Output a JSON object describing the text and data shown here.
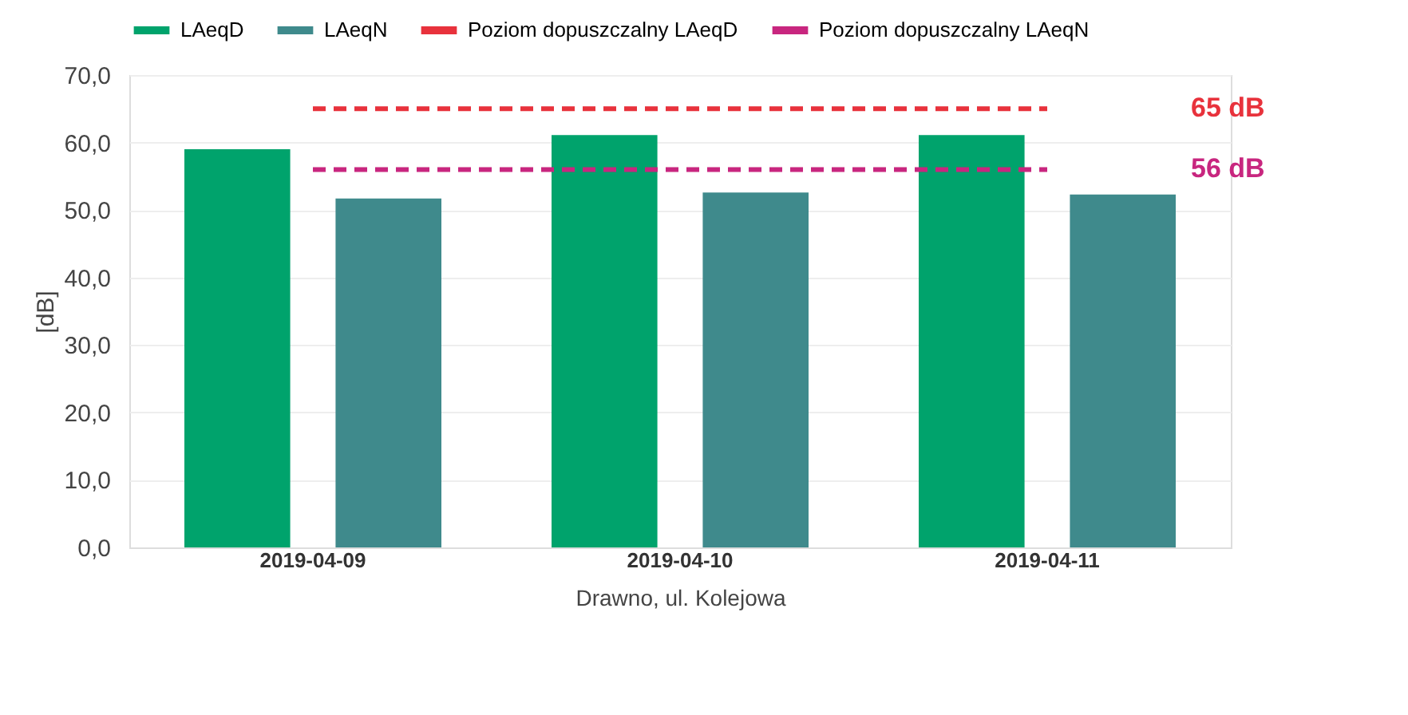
{
  "chart_data": {
    "type": "bar",
    "xlabel": "Drawno, ul. Kolejowa",
    "ylabel": "[dB]",
    "categories": [
      "2019-04-09",
      "2019-04-10",
      "2019-04-11"
    ],
    "series": [
      {
        "name": "LAeqD",
        "color": "#00a36c",
        "values": [
          59.0,
          61.1,
          61.1
        ]
      },
      {
        "name": "LAeqN",
        "color": "#3f8a8c",
        "values": [
          51.7,
          52.6,
          52.3
        ]
      },
      {
        "name": "Poziom dopuszczalny LAeqD",
        "type": "line",
        "color": "#e8323c",
        "line_style": "dashed",
        "values": [
          65,
          65,
          65
        ]
      },
      {
        "name": "Poziom dopuszczalny LAeqN",
        "type": "line",
        "color": "#c8267f",
        "line_style": "dashed",
        "values": [
          56,
          56,
          56
        ]
      }
    ],
    "annotations": [
      "65 dB",
      "56 dB"
    ],
    "ylim": [
      0,
      70
    ],
    "yticks": [
      {
        "value": 0,
        "label": "0,0"
      },
      {
        "value": 10,
        "label": "10,0"
      },
      {
        "value": 20,
        "label": "20,0"
      },
      {
        "value": 30,
        "label": "30,0"
      },
      {
        "value": 40,
        "label": "40,0"
      },
      {
        "value": 50,
        "label": "50,0"
      },
      {
        "value": 60,
        "label": "60,0"
      },
      {
        "value": 70,
        "label": "70,0"
      }
    ],
    "grid": "y",
    "legend": "top"
  }
}
